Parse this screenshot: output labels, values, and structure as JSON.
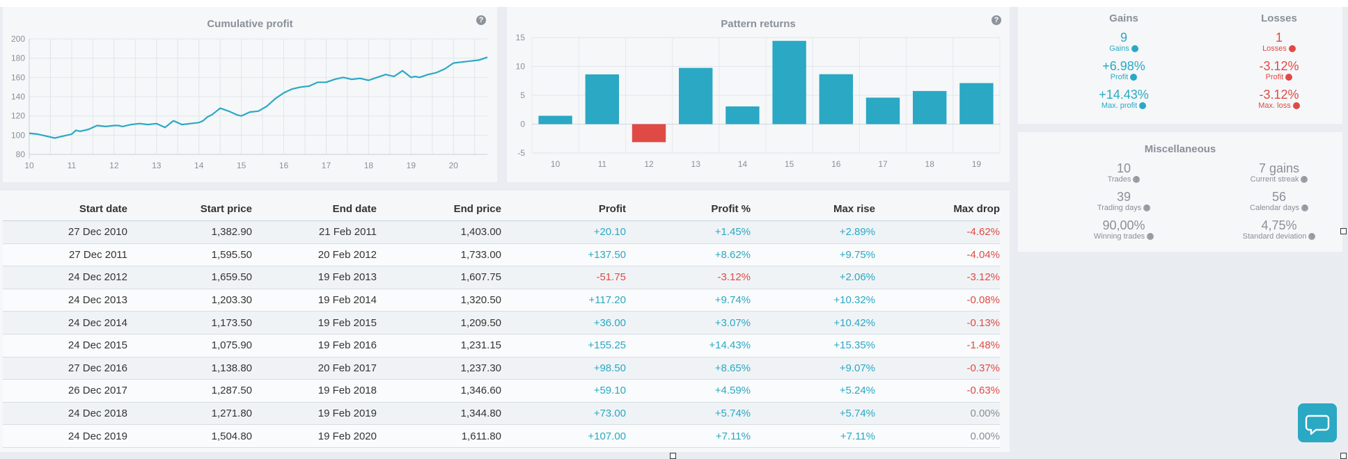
{
  "cumulative": {
    "title": "Cumulative profit",
    "y_ticks": [
      "200",
      "180",
      "160",
      "140",
      "120",
      "100",
      "80"
    ],
    "x_ticks": [
      "10",
      "11",
      "12",
      "13",
      "14",
      "15",
      "16",
      "17",
      "18",
      "19",
      "20"
    ],
    "line_color": "#2aa8c4"
  },
  "pattern": {
    "title": "Pattern returns",
    "y_ticks": [
      "15",
      "10",
      "5",
      "0",
      "-5"
    ],
    "positive_color": "#2aa8c4",
    "negative_color": "#e04a44"
  },
  "chart_data": [
    {
      "type": "line",
      "title": "Cumulative profit",
      "xlabel": "",
      "ylabel": "",
      "ylim": [
        80,
        200
      ],
      "xlim": [
        10,
        20.8
      ],
      "grid": true,
      "series": [
        {
          "x": [
            10,
            10.2,
            10.4,
            10.6,
            10.8,
            11,
            11.1,
            11.2,
            11.4,
            11.6,
            11.8,
            12,
            12.1,
            12.2,
            12.4,
            12.6,
            12.8,
            13,
            13.2,
            13.4,
            13.6,
            13.8,
            14,
            14.1,
            14.2,
            14.3,
            14.5,
            14.7,
            14.9,
            15,
            15.2,
            15.4,
            15.6,
            15.8,
            16,
            16.2,
            16.4,
            16.6,
            16.8,
            17,
            17.2,
            17.4,
            17.6,
            17.8,
            18,
            18.2,
            18.4,
            18.6,
            18.8,
            19,
            19.1,
            19.2,
            19.4,
            19.6,
            19.8,
            20,
            20.2,
            20.4,
            20.6,
            20.8
          ],
          "y": [
            102,
            101,
            99,
            97,
            99,
            101,
            105,
            104,
            106,
            110,
            109,
            110,
            110,
            109,
            111,
            112,
            111,
            112,
            108,
            115,
            111,
            112,
            113,
            115,
            119,
            121,
            128,
            125,
            121,
            120,
            124,
            125,
            130,
            138,
            144,
            148,
            150,
            151,
            155,
            155,
            158,
            160,
            158,
            159,
            157,
            160,
            163,
            161,
            167,
            160,
            161,
            160,
            163,
            165,
            169,
            175,
            176,
            177,
            178,
            181
          ]
        }
      ]
    },
    {
      "type": "bar",
      "title": "Pattern returns",
      "categories": [
        "10",
        "11",
        "12",
        "13",
        "14",
        "15",
        "16",
        "17",
        "18",
        "19"
      ],
      "values": [
        1.45,
        8.62,
        -3.12,
        9.74,
        3.07,
        14.43,
        8.65,
        4.59,
        5.74,
        7.11
      ],
      "ylim": [
        -5,
        15
      ],
      "grid": true
    }
  ],
  "stats": {
    "gains_title": "Gains",
    "losses_title": "Losses",
    "gains": {
      "count": "9",
      "count_label": "Gains",
      "profit": "+6.98%",
      "profit_label": "Profit",
      "max": "+14.43%",
      "max_label": "Max. profit"
    },
    "losses": {
      "count": "1",
      "count_label": "Losses",
      "profit": "-3.12%",
      "profit_label": "Profit",
      "max": "-3.12%",
      "max_label": "Max. loss"
    }
  },
  "misc": {
    "title": "Miscellaneous",
    "trades": "10",
    "trades_label": "Trades",
    "streak": "7 gains",
    "streak_label": "Current streak",
    "trading_days": "39",
    "trading_days_label": "Trading days",
    "calendar_days": "56",
    "calendar_days_label": "Calendar days",
    "winning": "90,00%",
    "winning_label": "Winning trades",
    "stddev": "4,75%",
    "stddev_label": "Standard deviation"
  },
  "table": {
    "headers": [
      "Start date",
      "Start price",
      "End date",
      "End price",
      "Profit",
      "Profit %",
      "Max rise",
      "Max drop"
    ],
    "rows": [
      [
        "27 Dec 2010",
        "1,382.90",
        "21 Feb 2011",
        "1,403.00",
        "+20.10",
        "+1.45%",
        "+2.89%",
        "-4.62%"
      ],
      [
        "27 Dec 2011",
        "1,595.50",
        "20 Feb 2012",
        "1,733.00",
        "+137.50",
        "+8.62%",
        "+9.75%",
        "-4.04%"
      ],
      [
        "24 Dec 2012",
        "1,659.50",
        "19 Feb 2013",
        "1,607.75",
        "-51.75",
        "-3.12%",
        "+2.06%",
        "-3.12%"
      ],
      [
        "24 Dec 2013",
        "1,203.30",
        "19 Feb 2014",
        "1,320.50",
        "+117.20",
        "+9.74%",
        "+10.32%",
        "-0.08%"
      ],
      [
        "24 Dec 2014",
        "1,173.50",
        "19 Feb 2015",
        "1,209.50",
        "+36.00",
        "+3.07%",
        "+10.42%",
        "-0.13%"
      ],
      [
        "24 Dec 2015",
        "1,075.90",
        "19 Feb 2016",
        "1,231.15",
        "+155.25",
        "+14.43%",
        "+15.35%",
        "-1.48%"
      ],
      [
        "27 Dec 2016",
        "1,138.80",
        "20 Feb 2017",
        "1,237.30",
        "+98.50",
        "+8.65%",
        "+9.07%",
        "-0.37%"
      ],
      [
        "26 Dec 2017",
        "1,287.50",
        "19 Feb 2018",
        "1,346.60",
        "+59.10",
        "+4.59%",
        "+5.24%",
        "-0.63%"
      ],
      [
        "24 Dec 2018",
        "1,271.80",
        "19 Feb 2019",
        "1,344.80",
        "+73.00",
        "+5.74%",
        "+5.74%",
        "0.00%"
      ],
      [
        "24 Dec 2019",
        "1,504.80",
        "19 Feb 2020",
        "1,611.80",
        "+107.00",
        "+7.11%",
        "+7.11%",
        "0.00%"
      ]
    ]
  },
  "help_glyph": "?",
  "chat_icon": "chat-bubble-icon"
}
